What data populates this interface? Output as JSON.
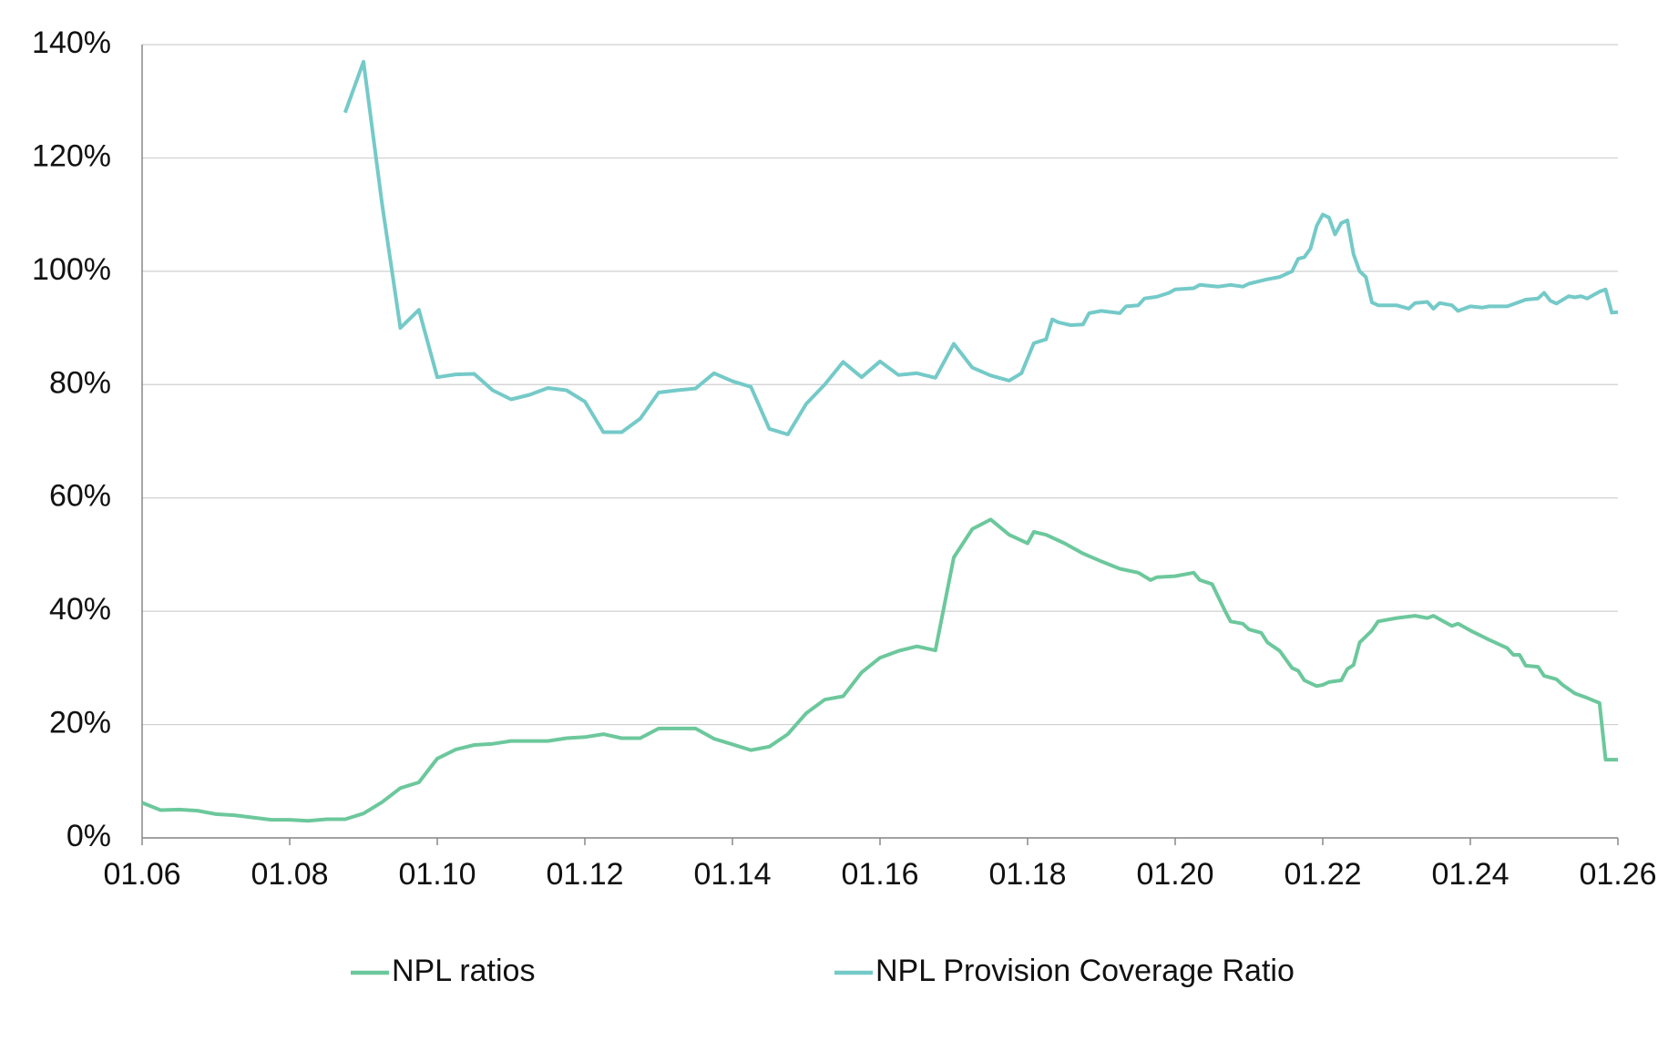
{
  "chart_data": {
    "type": "line",
    "xlim": [
      "01.06",
      "01.26"
    ],
    "xticks": [
      "01.06",
      "01.08",
      "01.10",
      "01.12",
      "01.14",
      "01.16",
      "01.18",
      "01.20",
      "01.22",
      "01.24",
      "01.26"
    ],
    "ylim": [
      0,
      140
    ],
    "yticks": [
      {
        "value": 0,
        "label": "0%"
      },
      {
        "value": 20,
        "label": "20%"
      },
      {
        "value": 40,
        "label": "40%"
      },
      {
        "value": 60,
        "label": "60%"
      },
      {
        "value": 80,
        "label": "80%"
      },
      {
        "value": 100,
        "label": "100%"
      },
      {
        "value": 120,
        "label": "120%"
      },
      {
        "value": 140,
        "label": "140%"
      }
    ],
    "grid": true,
    "legend": "bottom",
    "series": [
      {
        "name": "NPL ratios",
        "color": "#6cc89c",
        "x": [
          "01.06",
          "04.06",
          "07.06",
          "10.06",
          "01.07",
          "04.07",
          "07.07",
          "10.07",
          "01.08",
          "04.08",
          "07.08",
          "10.08",
          "01.09",
          "04.09",
          "07.09",
          "10.09",
          "01.10",
          "04.10",
          "07.10",
          "10.10",
          "01.11",
          "04.11",
          "07.11",
          "10.11",
          "01.12",
          "04.12",
          "07.12",
          "10.12",
          "01.13",
          "04.13",
          "07.13",
          "10.13",
          "01.14",
          "04.14",
          "07.14",
          "10.14",
          "01.15",
          "04.15",
          "07.15",
          "10.15",
          "01.16",
          "04.16",
          "07.16",
          "10.16",
          "01.17",
          "04.17",
          "07.17",
          "10.17",
          "01.18",
          "02.18",
          "04.18",
          "07.18",
          "10.18",
          "01.19",
          "04.19",
          "07.19",
          "09.19",
          "10.19",
          "01.20",
          "04.20",
          "05.20",
          "07.20",
          "09.20",
          "10.20",
          "12.20",
          "01.21",
          "03.21",
          "04.21",
          "06.21",
          "08.21",
          "09.21",
          "10.21",
          "12.21",
          "01.22",
          "02.22",
          "04.22",
          "05.22",
          "06.22",
          "07.22",
          "09.22",
          "10.22",
          "01.23",
          "04.23",
          "05.23",
          "06.23",
          "07.23",
          "09.23",
          "10.23",
          "11.23",
          "01.24",
          "04.24",
          "07.24",
          "08.24",
          "09.24",
          "10.24",
          "12.24",
          "01.25",
          "03.25",
          "04.25",
          "06.25",
          "08.25",
          "10.25",
          "11.25",
          "01.26"
        ],
        "values": [
          6.2,
          4.9,
          5.0,
          4.8,
          4.2,
          4.0,
          3.6,
          3.2,
          3.2,
          3.0,
          3.3,
          3.3,
          4.3,
          6.3,
          8.8,
          9.8,
          14.0,
          15.6,
          16.4,
          16.6,
          17.1,
          17.1,
          17.1,
          17.6,
          17.8,
          18.3,
          17.6,
          17.6,
          19.3,
          19.3,
          19.3,
          17.5,
          16.5,
          15.5,
          16.1,
          18.3,
          22.0,
          24.4,
          25.0,
          29.2,
          31.8,
          33.0,
          33.8,
          33.1,
          49.5,
          54.5,
          56.2,
          53.5,
          52.0,
          54.0,
          53.5,
          52.0,
          50.2,
          48.8,
          47.5,
          46.8,
          45.5,
          46.0,
          46.2,
          46.8,
          45.5,
          44.8,
          40.3,
          38.2,
          37.8,
          36.8,
          36.2,
          34.5,
          33.0,
          30.0,
          29.5,
          27.8,
          26.8,
          27.0,
          27.5,
          27.8,
          29.8,
          30.5,
          34.5,
          36.6,
          38.2,
          38.8,
          39.2,
          39.0,
          38.8,
          39.2,
          38.0,
          37.4,
          37.8,
          36.6,
          35.0,
          33.5,
          32.3,
          32.3,
          30.4,
          30.2,
          28.6,
          28.0,
          27.0,
          25.5,
          24.7,
          23.8,
          13.8,
          13.8
        ]
      },
      {
        "name": "NPL Provision Coverage Ratio",
        "color": "#74cac8",
        "x": [
          "10.08",
          "01.09",
          "04.09",
          "07.09",
          "10.09",
          "01.10",
          "04.10",
          "07.10",
          "10.10",
          "01.11",
          "04.11",
          "07.11",
          "10.11",
          "01.12",
          "04.12",
          "07.12",
          "10.12",
          "01.13",
          "04.13",
          "07.13",
          "10.13",
          "01.14",
          "04.14",
          "07.14",
          "10.14",
          "01.15",
          "04.15",
          "07.15",
          "10.15",
          "01.16",
          "04.16",
          "07.16",
          "10.16",
          "01.17",
          "04.17",
          "07.17",
          "10.17",
          "12.17",
          "02.18",
          "04.18",
          "05.18",
          "06.18",
          "08.18",
          "10.18",
          "11.18",
          "01.19",
          "04.19",
          "05.19",
          "07.19",
          "08.19",
          "10.19",
          "12.19",
          "01.20",
          "04.20",
          "05.20",
          "08.20",
          "10.20",
          "12.20",
          "01.21",
          "04.21",
          "06.21",
          "08.21",
          "09.21",
          "10.21",
          "11.21",
          "12.21",
          "01.22",
          "02.22",
          "03.22",
          "04.22",
          "05.22",
          "06.22",
          "07.22",
          "08.22",
          "09.22",
          "10.22",
          "01.23",
          "03.23",
          "04.23",
          "06.23",
          "07.23",
          "08.23",
          "10.23",
          "11.23",
          "01.24",
          "03.24",
          "04.24",
          "07.24",
          "09.24",
          "10.24",
          "12.24",
          "01.25",
          "02.25",
          "03.25",
          "05.25",
          "06.25",
          "07.25",
          "08.25",
          "10.25",
          "11.25",
          "12.25",
          "01.26"
        ],
        "values": [
          128,
          137,
          112,
          90,
          93.2,
          81.3,
          81.8,
          81.9,
          79,
          77.4,
          78.2,
          79.4,
          79,
          77,
          71.6,
          71.6,
          74,
          78.6,
          79,
          79.3,
          82,
          80.6,
          79.6,
          72.2,
          71.2,
          76.6,
          80,
          84,
          81.3,
          84.1,
          81.7,
          82,
          81.2,
          87.2,
          83,
          81.6,
          80.7,
          82,
          87.3,
          88,
          91.5,
          91,
          90.5,
          90.6,
          92.6,
          93,
          92.6,
          93.8,
          94,
          95.2,
          95.5,
          96.2,
          96.8,
          97,
          97.6,
          97.3,
          97.6,
          97.3,
          97.8,
          98.6,
          99,
          100,
          102.2,
          102.5,
          104,
          108,
          110,
          109.5,
          106.5,
          108.5,
          109,
          103,
          100,
          99,
          94.5,
          94,
          94,
          93.4,
          94.4,
          94.6,
          93.4,
          94.4,
          94,
          93,
          93.8,
          93.6,
          93.8,
          93.8,
          94.6,
          95,
          95.2,
          96.2,
          94.8,
          94.3,
          95.6,
          95.4,
          95.6,
          95.2,
          96.4,
          96.8,
          92.7,
          92.8
        ]
      }
    ]
  }
}
